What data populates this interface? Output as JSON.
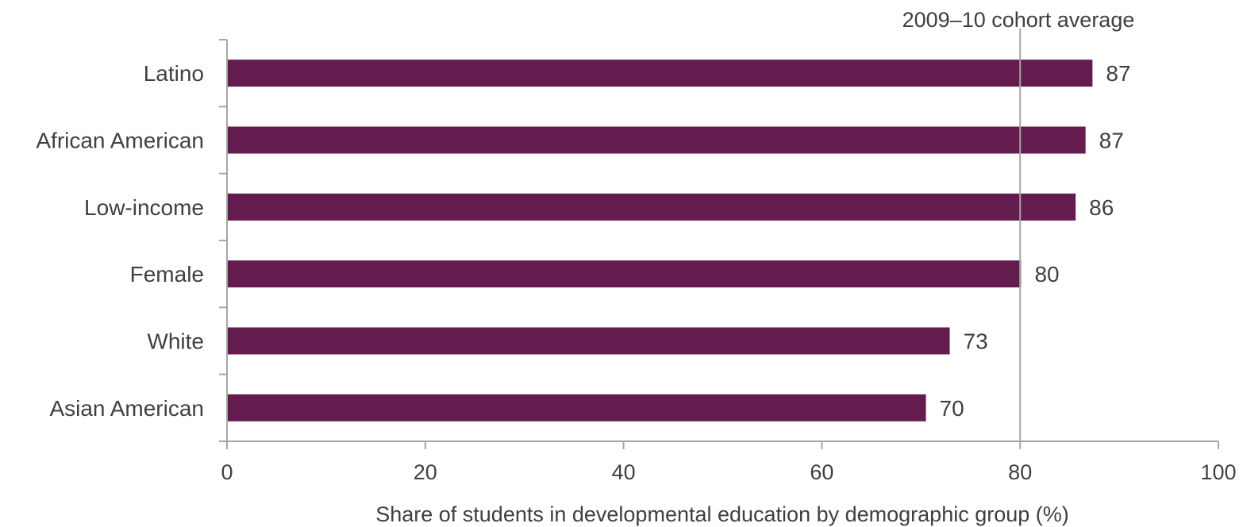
{
  "chart_data": {
    "type": "bar",
    "orientation": "horizontal",
    "categories": [
      "Latino",
      "African American",
      "Low-income",
      "Female",
      "White",
      "Asian American"
    ],
    "values": [
      87.3,
      86.6,
      85.6,
      80.1,
      72.9,
      70.5
    ],
    "data_labels": [
      "87",
      "87",
      "86",
      "80",
      "73",
      "70"
    ],
    "xlabel": "Share of students in developmental education by demographic group (%)",
    "ylabel": "",
    "xlim": [
      0,
      100
    ],
    "xticks": [
      0,
      20,
      40,
      60,
      80,
      100
    ],
    "xtick_labels": [
      "0",
      "20",
      "40",
      "60",
      "80",
      "100"
    ],
    "reference_line": {
      "value": 80,
      "label": "2009–10 cohort average"
    },
    "bar_color": "#641c4f",
    "grid": false,
    "legend": "none"
  }
}
